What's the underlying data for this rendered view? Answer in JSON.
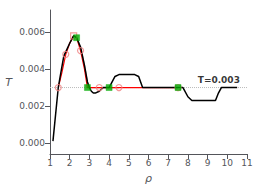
{
  "chart_data": {
    "type": "line",
    "xlabel": "ρ",
    "ylabel": "T",
    "xlim": [
      1,
      11
    ],
    "ylim": [
      -0.0006,
      0.0072
    ],
    "xticks": [
      1,
      2,
      3,
      4,
      5,
      6,
      7,
      8,
      9,
      10,
      11
    ],
    "yticks": [
      {
        "value": 0,
        "label": "0.000"
      },
      0.002,
      0.004,
      0.006
    ],
    "grid": false,
    "series": [
      {
        "type": "line",
        "color": "#aaaaaa",
        "x": [
          2.0,
          2.2,
          2.35,
          2.55,
          2.75,
          2.9,
          3.0,
          3.5,
          4.0,
          4.5
        ],
        "values": [
          0.0054,
          0.0058,
          0.0057,
          0.0052,
          0.0042,
          0.0033,
          0.003,
          0.003,
          0.003,
          0.003
        ]
      },
      {
        "type": "line",
        "color": "red",
        "x": [
          1.42,
          1.6,
          1.8,
          2.0,
          2.2,
          2.35,
          2.55,
          2.75,
          2.9,
          3.0,
          3.5,
          4.0,
          4.5,
          5.0,
          6.0,
          7.5
        ],
        "values": [
          0.003,
          0.0038,
          0.0048,
          0.0054,
          0.0058,
          0.0057,
          0.005,
          0.004,
          0.003,
          0.003,
          0.003,
          0.003,
          0.003,
          0.003,
          0.003,
          0.003
        ]
      },
      {
        "type": "line",
        "color": "black",
        "x": [
          1.15,
          1.42,
          1.5,
          1.7,
          2.0,
          2.2,
          2.35,
          2.55,
          2.75,
          2.9,
          3.0,
          3.1,
          3.2,
          3.3,
          3.5,
          3.7,
          3.85,
          4.0,
          4.1,
          4.3,
          4.5,
          5.0,
          5.3,
          5.5,
          5.7,
          5.85,
          6.0,
          6.5,
          7.0,
          7.5,
          7.6,
          7.75,
          8.0,
          8.2,
          8.5,
          9.0,
          9.4,
          9.55,
          9.7,
          10.0,
          10.5
        ],
        "values": [
          0.0001,
          0.003,
          0.0035,
          0.0047,
          0.0054,
          0.0058,
          0.0057,
          0.0052,
          0.0042,
          0.0033,
          0.003,
          0.0028,
          0.0027,
          0.0027,
          0.0028,
          0.003,
          0.003,
          0.003,
          0.0032,
          0.0036,
          0.0037,
          0.0037,
          0.0037,
          0.0036,
          0.003,
          0.003,
          0.003,
          0.003,
          0.003,
          0.003,
          0.003,
          0.003,
          0.0025,
          0.0023,
          0.0023,
          0.0023,
          0.0023,
          0.0027,
          0.003,
          0.003,
          0.003
        ]
      },
      {
        "type": "hline",
        "color": "#bbbbbb",
        "line_style": "dotted",
        "values": [
          0.003
        ]
      },
      {
        "type": "scatter",
        "marker": "open_square",
        "color": "#f08080",
        "x": [
          2.2
        ],
        "values": [
          0.0058
        ]
      },
      {
        "type": "scatter",
        "marker": "open_circle",
        "color": "#f08080",
        "x": [
          1.42,
          1.8,
          2.55,
          3.5,
          4.5,
          7.5
        ],
        "values": [
          0.003,
          0.0048,
          0.005,
          0.003,
          0.003,
          0.003
        ]
      },
      {
        "type": "scatter",
        "marker": "square",
        "color": "#00aa00",
        "x": [
          2.35,
          2.9,
          4.0,
          7.5
        ],
        "values": [
          0.0057,
          0.003,
          0.003,
          0.003
        ]
      }
    ],
    "annotations": [
      {
        "text": "T=0.003",
        "x": 8.5,
        "y": 0.00318
      }
    ]
  }
}
